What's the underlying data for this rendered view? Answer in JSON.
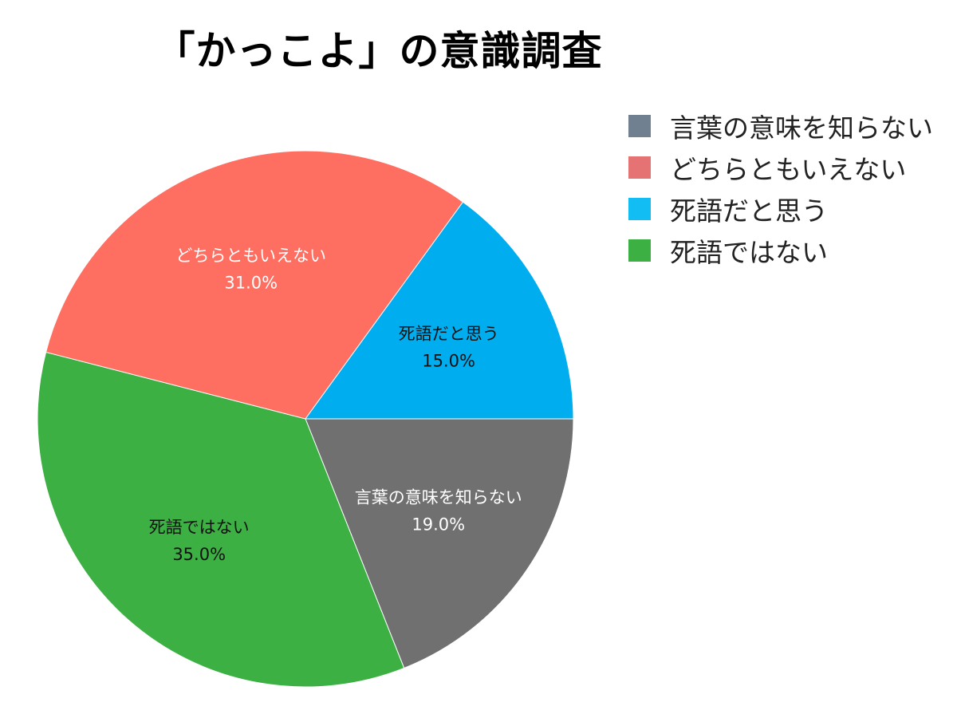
{
  "chart_data": {
    "type": "pie",
    "title": "「かっこよ」の意識調査",
    "unit": "%",
    "start_angle_deg": 0,
    "direction": "clockwise",
    "slices": [
      {
        "label": "言葉の意味を知らない",
        "value": 19.0,
        "value_label": "19.0%",
        "color": "#707070",
        "text_color": "#ffffff"
      },
      {
        "label": "死語ではない",
        "value": 35.0,
        "value_label": "35.0%",
        "color": "#3cb043",
        "text_color": "#111111"
      },
      {
        "label": "どちらともいえない",
        "value": 31.0,
        "value_label": "31.0%",
        "color": "#ff6f61",
        "text_color": "#ffffff"
      },
      {
        "label": "死語だと思う",
        "value": 15.0,
        "value_label": "15.0%",
        "color": "#00adee",
        "text_color": "#111111"
      }
    ],
    "legend": {
      "placement": "top-right",
      "items": [
        {
          "label": "言葉の意味を知らない",
          "color": "#708090"
        },
        {
          "label": "どちらともいえない",
          "color": "#e57373"
        },
        {
          "label": "死語だと思う",
          "color": "#12bdf3"
        },
        {
          "label": "死語ではない",
          "color": "#3cb043"
        }
      ]
    }
  }
}
